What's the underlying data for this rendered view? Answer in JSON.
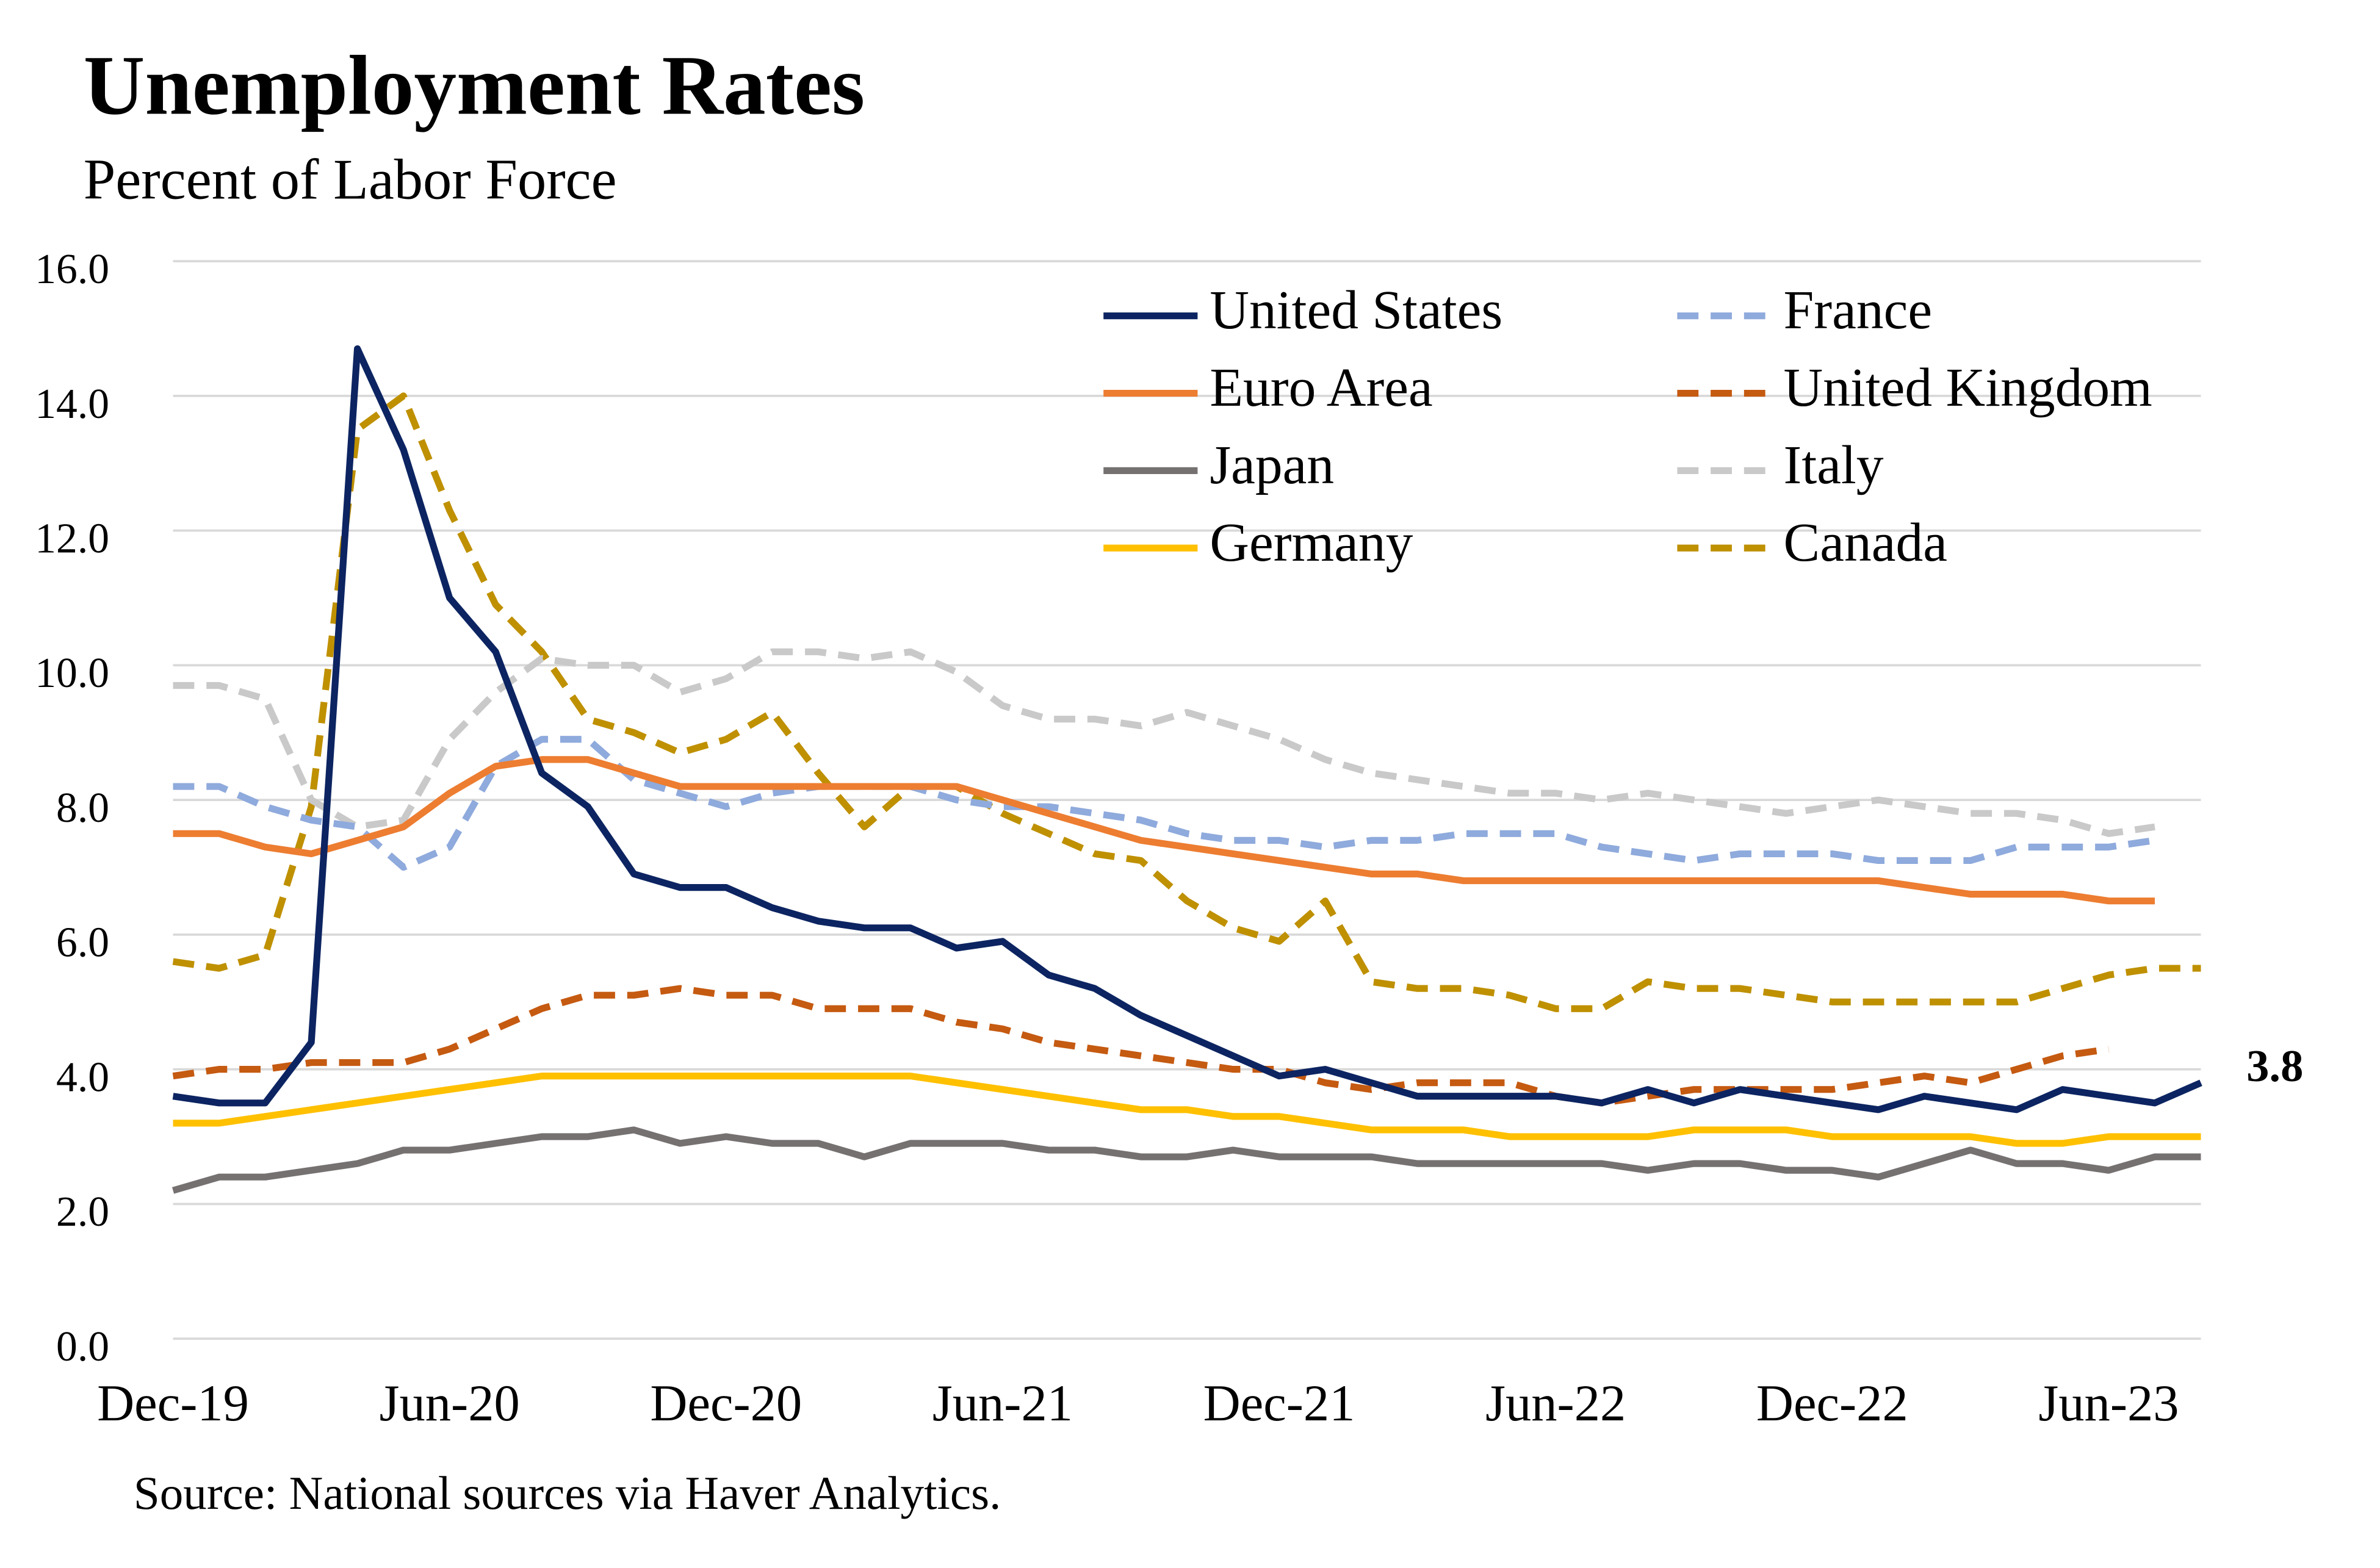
{
  "chart_data": {
    "type": "line",
    "title": "Unemployment Rates",
    "subtitle": "Percent of Labor Force",
    "source": "Source: National sources via Haver Analytics.",
    "categories": [
      "Dec-19",
      null,
      null,
      null,
      null,
      null,
      "Jun-20",
      null,
      null,
      null,
      null,
      null,
      "Dec-20",
      null,
      null,
      null,
      null,
      null,
      "Jun-21",
      null,
      null,
      null,
      null,
      null,
      "Dec-21",
      null,
      null,
      null,
      null,
      null,
      "Jun-22",
      null,
      null,
      null,
      null,
      null,
      "Dec-22",
      null,
      null,
      null,
      null,
      null,
      "Jun-23",
      null,
      null
    ],
    "ylim": [
      0,
      16
    ],
    "yticks": [
      {
        "value": 0,
        "label": "0.0"
      },
      {
        "value": 2,
        "label": "2.0"
      },
      {
        "value": 4,
        "label": "4.0"
      },
      {
        "value": 6,
        "label": "6.0"
      },
      {
        "value": 8,
        "label": "8.0"
      },
      {
        "value": 10,
        "label": "10.0"
      },
      {
        "value": 12,
        "label": "12.0"
      },
      {
        "value": 14,
        "label": "14.0"
      },
      {
        "value": 16,
        "label": "16.0"
      }
    ],
    "grid": true,
    "legend": "upper right",
    "series": [
      {
        "name": "United States",
        "color": "#0c2461",
        "dash": false,
        "values": [
          3.6,
          3.5,
          3.5,
          4.4,
          14.7,
          13.2,
          11.0,
          10.2,
          8.4,
          7.9,
          6.9,
          6.7,
          6.7,
          6.4,
          6.2,
          6.1,
          6.1,
          5.8,
          5.9,
          5.4,
          5.2,
          4.8,
          4.5,
          4.2,
          3.9,
          4.0,
          3.8,
          3.6,
          3.6,
          3.6,
          3.6,
          3.5,
          3.7,
          3.5,
          3.7,
          3.6,
          3.5,
          3.4,
          3.6,
          3.5,
          3.4,
          3.7,
          3.6,
          3.5,
          3.8
        ]
      },
      {
        "name": "Euro Area",
        "color": "#ed7d31",
        "dash": false,
        "values": [
          7.5,
          7.5,
          7.3,
          7.2,
          7.4,
          7.6,
          8.1,
          8.5,
          8.6,
          8.6,
          8.4,
          8.2,
          8.2,
          8.2,
          8.2,
          8.2,
          8.2,
          8.2,
          8.0,
          7.8,
          7.6,
          7.4,
          7.3,
          7.2,
          7.1,
          7.0,
          6.9,
          6.9,
          6.8,
          6.8,
          6.8,
          6.8,
          6.8,
          6.8,
          6.8,
          6.8,
          6.8,
          6.8,
          6.7,
          6.6,
          6.6,
          6.6,
          6.5,
          6.5,
          null
        ]
      },
      {
        "name": "Japan",
        "color": "#767171",
        "dash": false,
        "values": [
          2.2,
          2.4,
          2.4,
          2.5,
          2.6,
          2.8,
          2.8,
          2.9,
          3.0,
          3.0,
          3.1,
          2.9,
          3.0,
          2.9,
          2.9,
          2.7,
          2.9,
          2.9,
          2.9,
          2.8,
          2.8,
          2.7,
          2.7,
          2.8,
          2.7,
          2.7,
          2.7,
          2.6,
          2.6,
          2.6,
          2.6,
          2.6,
          2.5,
          2.6,
          2.6,
          2.5,
          2.5,
          2.4,
          2.6,
          2.8,
          2.6,
          2.6,
          2.5,
          2.7,
          2.7
        ]
      },
      {
        "name": "Germany",
        "color": "#ffc000",
        "dash": false,
        "values": [
          3.2,
          3.2,
          3.3,
          3.4,
          3.5,
          3.6,
          3.7,
          3.8,
          3.9,
          3.9,
          3.9,
          3.9,
          3.9,
          3.9,
          3.9,
          3.9,
          3.9,
          3.8,
          3.7,
          3.6,
          3.5,
          3.4,
          3.4,
          3.3,
          3.3,
          3.2,
          3.1,
          3.1,
          3.1,
          3.0,
          3.0,
          3.0,
          3.0,
          3.1,
          3.1,
          3.1,
          3.0,
          3.0,
          3.0,
          3.0,
          2.9,
          2.9,
          3.0,
          3.0,
          3.0
        ]
      },
      {
        "name": "France",
        "color": "#8faadc",
        "dash": true,
        "values": [
          8.2,
          8.2,
          7.9,
          7.7,
          7.6,
          7.0,
          7.3,
          8.5,
          8.9,
          8.9,
          8.3,
          8.1,
          7.9,
          8.1,
          8.2,
          8.2,
          8.2,
          8.0,
          7.9,
          7.9,
          7.8,
          7.7,
          7.5,
          7.4,
          7.4,
          7.3,
          7.4,
          7.4,
          7.5,
          7.5,
          7.5,
          7.3,
          7.2,
          7.1,
          7.2,
          7.2,
          7.2,
          7.1,
          7.1,
          7.1,
          7.3,
          7.3,
          7.3,
          7.4,
          null
        ]
      },
      {
        "name": "United Kingdom",
        "color": "#c55a11",
        "dash": true,
        "values": [
          3.9,
          4.0,
          4.0,
          4.1,
          4.1,
          4.1,
          4.3,
          4.6,
          4.9,
          5.1,
          5.1,
          5.2,
          5.1,
          5.1,
          4.9,
          4.9,
          4.9,
          4.7,
          4.6,
          4.4,
          4.3,
          4.2,
          4.1,
          4.0,
          4.0,
          3.8,
          3.7,
          3.8,
          3.8,
          3.8,
          3.6,
          3.5,
          3.6,
          3.7,
          3.7,
          3.7,
          3.7,
          3.8,
          3.9,
          3.8,
          4.0,
          4.2,
          4.3,
          null,
          null
        ]
      },
      {
        "name": "Italy",
        "color": "#c9c9c9",
        "dash": true,
        "values": [
          9.7,
          9.7,
          9.5,
          8.0,
          7.6,
          7.7,
          8.9,
          9.6,
          10.1,
          10.0,
          10.0,
          9.6,
          9.8,
          10.2,
          10.2,
          10.1,
          10.2,
          9.9,
          9.4,
          9.2,
          9.2,
          9.1,
          9.3,
          9.1,
          8.9,
          8.6,
          8.4,
          8.3,
          8.2,
          8.1,
          8.1,
          8.0,
          8.1,
          8.0,
          7.9,
          7.8,
          7.9,
          8.0,
          7.9,
          7.8,
          7.8,
          7.7,
          7.5,
          7.6,
          null
        ]
      },
      {
        "name": "Canada",
        "color": "#bf9000",
        "dash": true,
        "values": [
          5.6,
          5.5,
          5.7,
          7.9,
          13.5,
          14.0,
          12.3,
          10.9,
          10.2,
          9.2,
          9.0,
          8.7,
          8.9,
          9.3,
          8.4,
          7.6,
          8.2,
          8.2,
          7.8,
          7.5,
          7.2,
          7.1,
          6.5,
          6.1,
          5.9,
          6.5,
          5.3,
          5.2,
          5.2,
          5.1,
          4.9,
          4.9,
          5.3,
          5.2,
          5.2,
          5.1,
          5.0,
          5.0,
          5.0,
          5.0,
          5.0,
          5.2,
          5.4,
          5.5,
          5.5
        ]
      }
    ]
  }
}
